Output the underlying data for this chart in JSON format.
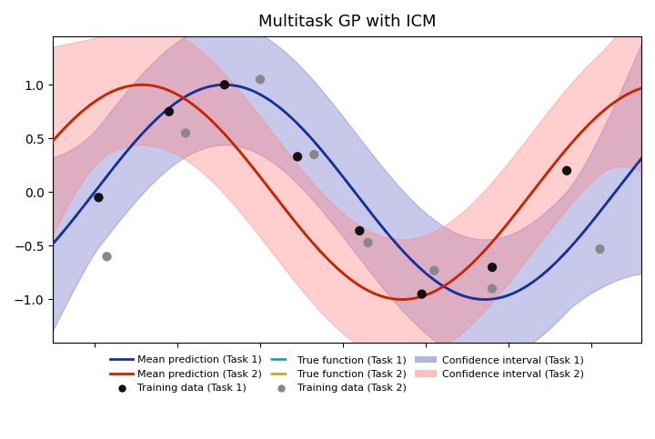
{
  "title": "Multitask GP with ICM",
  "xlim": [
    -0.5,
    6.6
  ],
  "ylim": [
    -1.4,
    1.45
  ],
  "task1_color": "#1a2f9e",
  "task2_color": "#cc2200",
  "task1_true_color": "#00a0b0",
  "task2_true_color": "#c8a000",
  "ci1_color": "#7777cc",
  "ci2_color": "#ff8888",
  "train1_color": "#111111",
  "train2_color": "#888888",
  "ci1_alpha": 0.4,
  "ci2_alpha": 0.4,
  "x_train1": [
    0.05,
    0.9,
    1.57,
    2.45,
    3.2,
    3.95,
    4.8,
    5.7
  ],
  "y_train1": [
    -0.05,
    0.75,
    1.0,
    0.33,
    -0.36,
    -0.95,
    -0.7,
    0.2
  ],
  "x_train2": [
    0.15,
    1.1,
    2.0,
    2.65,
    3.3,
    4.1,
    4.8,
    6.1
  ],
  "y_train2": [
    -0.6,
    0.55,
    1.05,
    0.35,
    -0.47,
    -0.73,
    -0.9,
    -0.53
  ],
  "legend_row1": [
    "Mean prediction (Task 1)",
    "Mean prediction (Task 2)",
    "Training data (Task 1)"
  ],
  "legend_row2": [
    "True function (Task 1)",
    "True function (Task 2)",
    "Training data (Task 2)"
  ],
  "legend_row3": [
    "Confidence interval (Task 1)",
    "Confidence interval (Task 2)"
  ]
}
